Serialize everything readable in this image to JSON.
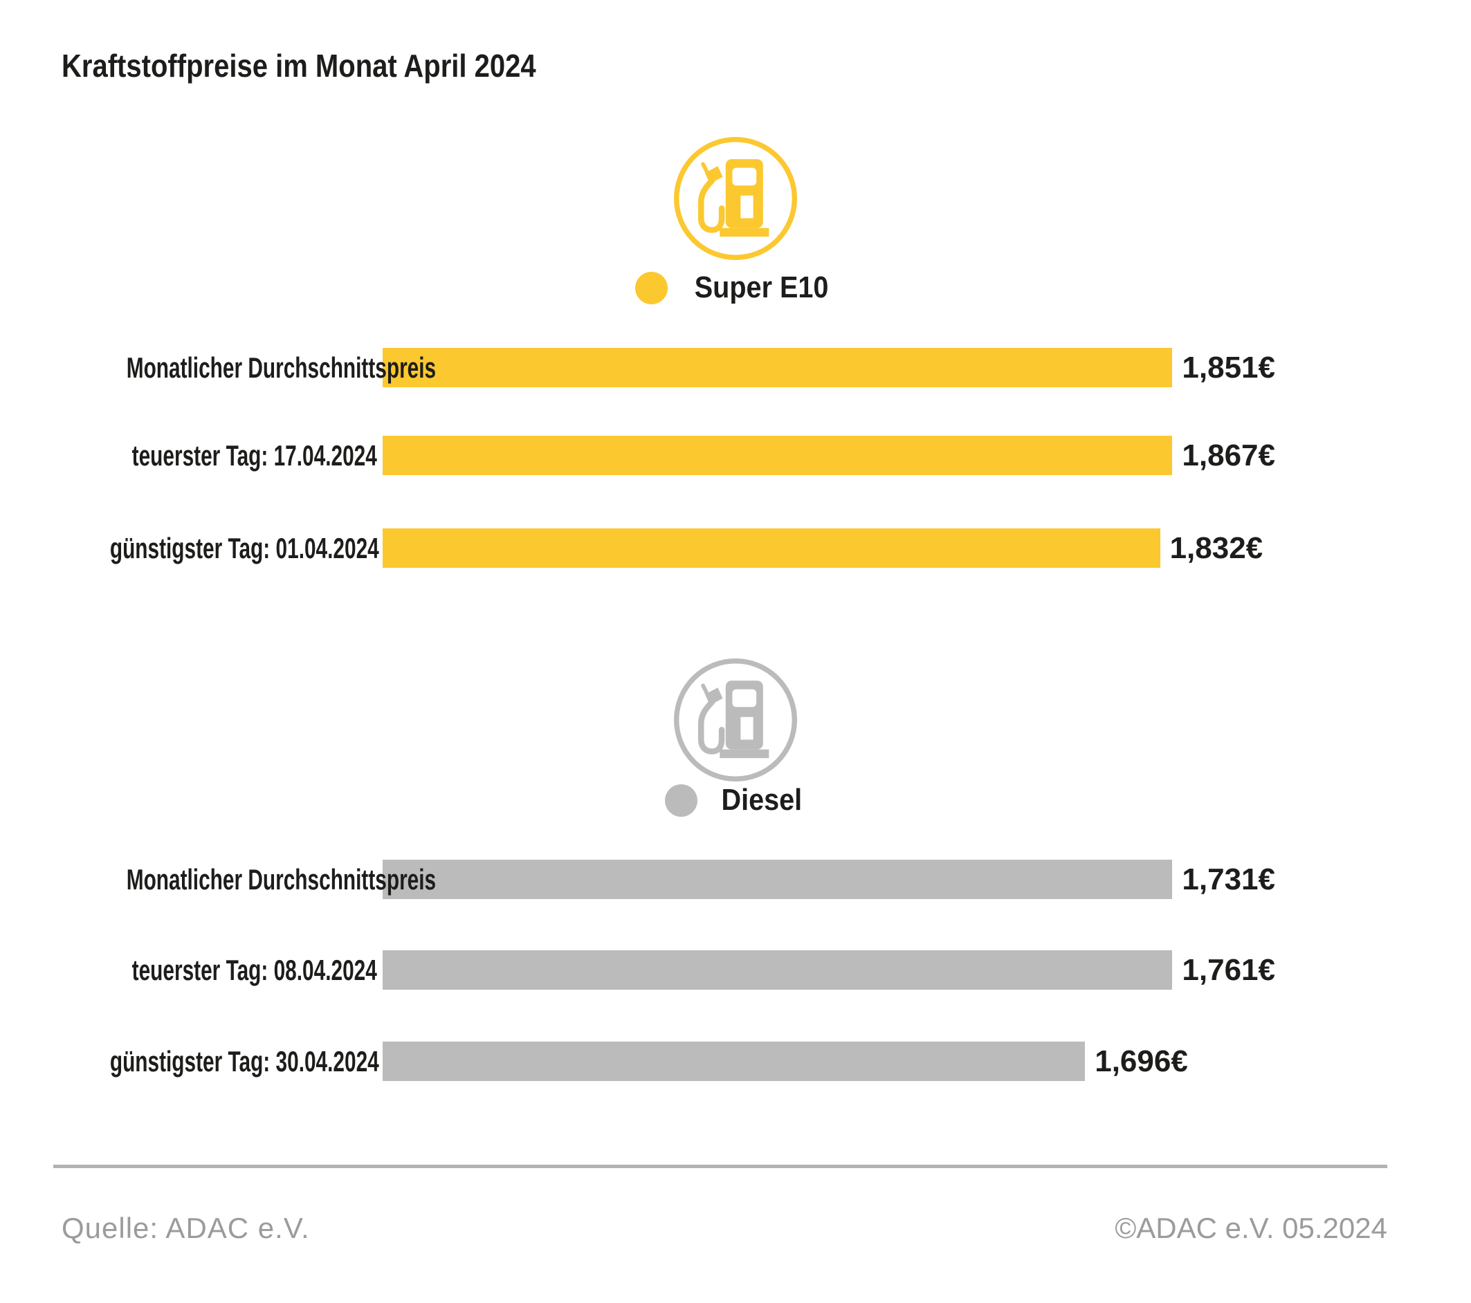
{
  "page": {
    "title": "Kraftstoffpreise im Monat April 2024"
  },
  "colors": {
    "super_e10": "#FCC82F",
    "diesel": "#BBBBBB",
    "text": "#1d1d1b",
    "muted": "#9b9b9b",
    "divider": "#b2b2b2"
  },
  "chart_data": {
    "type": "bar",
    "orientation": "horizontal",
    "title": "Kraftstoffpreise im Monat April 2024",
    "unit": "EUR pro Liter",
    "axis_note": "bars not zero-based, each group independently scaled",
    "groups": [
      {
        "legend": "Super E10",
        "icon": "fuel-pump-icon",
        "color": "#FCC82F",
        "rows": [
          {
            "label": "Monatlicher Durchschnittspreis",
            "value": 1.851,
            "value_display": "1,851€",
            "bar_pct": 91.3
          },
          {
            "label": "teuerster Tag: 17.04.2024",
            "value": 1.867,
            "value_display": "1,867€",
            "bar_pct": 94.7
          },
          {
            "label": "günstigster Tag: 01.04.2024",
            "value": 1.832,
            "value_display": "1,832€",
            "bar_pct": 87.1
          }
        ]
      },
      {
        "legend": "Diesel",
        "icon": "fuel-pump-icon",
        "color": "#BBBBBB",
        "rows": [
          {
            "label": "Monatlicher Durchschnittspreis",
            "value": 1.731,
            "value_display": "1,731€",
            "bar_pct": 90.3
          },
          {
            "label": "teuerster Tag: 08.04.2024",
            "value": 1.761,
            "value_display": "1,761€",
            "bar_pct": 100
          },
          {
            "label": "günstigster Tag: 30.04.2024",
            "value": 1.696,
            "value_display": "1,696€",
            "bar_pct": 78.7
          }
        ]
      }
    ]
  },
  "footer": {
    "source": "Quelle: ADAC e.V.",
    "copyright": "©ADAC e.V. 05.2024"
  }
}
